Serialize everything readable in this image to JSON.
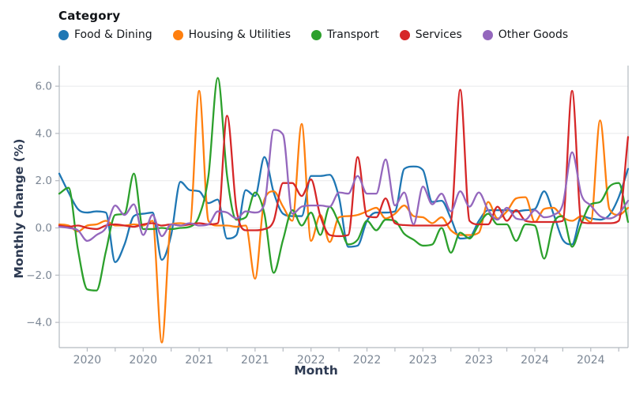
{
  "legend": {
    "title": "Category"
  },
  "axes": {
    "x_title": "Month",
    "y_title": "Monthly Change (%)",
    "x_tick_labels": [
      "2020",
      "2020",
      "2021",
      "2021",
      "2022",
      "2022",
      "2023",
      "2023",
      "2024",
      "2024"
    ],
    "y_tick_labels": [
      "6.0",
      "4.0",
      "2.0",
      "0.0",
      "−2.0",
      "−4.0"
    ],
    "y_tick_values": [
      6,
      4,
      2,
      0,
      -2,
      -4
    ]
  },
  "chart_data": {
    "type": "line",
    "x_unit": "month",
    "x_start_month": "2019-10",
    "x_end_month": "2024-11",
    "n_points": 62,
    "xlabel": "Month",
    "ylabel": "Monthly Change (%)",
    "ylim": [
      -5.1,
      6.9
    ],
    "grid": "horizontal",
    "legend_position": "top-left",
    "x_label_month_indices": [
      3,
      9,
      15,
      21,
      27,
      33,
      39,
      45,
      51,
      57
    ],
    "x_minor_tick_step_months": 3,
    "series": [
      {
        "name": "Food & Dining",
        "color": "#1f77b4",
        "values": [
          2.3,
          1.5,
          0.8,
          0.65,
          0.7,
          0.65,
          -1.45,
          -0.7,
          0.5,
          0.6,
          0.65,
          -1.35,
          -0.3,
          1.95,
          1.6,
          1.55,
          1.05,
          1.2,
          -0.45,
          -0.3,
          1.6,
          1.35,
          3.0,
          1.5,
          0.6,
          0.5,
          0.5,
          2.2,
          2.2,
          2.25,
          1.3,
          -0.8,
          -0.75,
          0.3,
          0.65,
          0.65,
          0.7,
          2.5,
          2.6,
          2.45,
          1.1,
          1.15,
          0.4,
          -0.45,
          -0.4,
          0.3,
          0.75,
          0.75,
          0.75,
          0.7,
          0.75,
          0.8,
          1.55,
          0.6,
          -0.5,
          -0.7,
          0.5,
          0.4,
          0.35,
          0.55,
          1.3,
          2.5
        ]
      },
      {
        "name": "Housing & Utilities",
        "color": "#ff7f0e",
        "values": [
          0.15,
          0.1,
          -0.15,
          0.1,
          0.15,
          0.3,
          0.1,
          0.1,
          0.15,
          0.1,
          0.3,
          -4.85,
          0.15,
          0.2,
          0.15,
          5.8,
          0.3,
          0.1,
          0.1,
          0.05,
          0.1,
          -2.15,
          1.2,
          1.55,
          0.9,
          0.3,
          4.4,
          -0.55,
          0.55,
          -0.6,
          0.45,
          0.5,
          0.55,
          0.7,
          0.85,
          0.4,
          0.6,
          0.95,
          0.5,
          0.45,
          0.2,
          0.45,
          -0.1,
          -0.3,
          -0.3,
          -0.2,
          1.1,
          0.4,
          0.7,
          1.25,
          1.3,
          0.25,
          0.8,
          0.85,
          0.45,
          0.3,
          0.5,
          0.25,
          4.55,
          0.8,
          0.55,
          0.85
        ]
      },
      {
        "name": "Transport",
        "color": "#2ca02c",
        "values": [
          1.45,
          1.7,
          -0.9,
          -2.6,
          -2.65,
          -1.0,
          0.55,
          0.6,
          2.3,
          -0.05,
          -0.05,
          0.0,
          -0.05,
          0.0,
          0.05,
          0.5,
          2.2,
          6.35,
          2.2,
          0.35,
          0.45,
          1.5,
          0.6,
          -1.9,
          -0.5,
          0.75,
          0.1,
          0.65,
          -0.3,
          0.9,
          0.2,
          -0.7,
          -0.5,
          0.3,
          -0.1,
          0.35,
          0.3,
          -0.25,
          -0.5,
          -0.75,
          -0.7,
          0.0,
          -1.05,
          -0.2,
          -0.45,
          0.15,
          0.6,
          0.15,
          0.15,
          -0.55,
          0.15,
          0.1,
          -1.3,
          0.2,
          0.5,
          -0.8,
          0.2,
          1.0,
          1.1,
          1.75,
          1.9,
          0.25
        ]
      },
      {
        "name": "Services",
        "color": "#d62728",
        "values": [
          0.1,
          0.05,
          0.1,
          0.0,
          -0.05,
          0.1,
          0.15,
          0.1,
          0.05,
          0.15,
          0.2,
          0.1,
          0.15,
          0.1,
          0.15,
          0.2,
          0.15,
          0.2,
          4.75,
          0.8,
          -0.1,
          -0.1,
          -0.05,
          0.3,
          1.9,
          1.9,
          1.35,
          2.05,
          0.5,
          -0.3,
          -0.35,
          -0.3,
          3.0,
          0.5,
          0.45,
          1.25,
          0.2,
          0.12,
          0.1,
          0.1,
          0.1,
          0.1,
          0.3,
          5.85,
          0.3,
          0.15,
          0.15,
          0.9,
          0.3,
          0.75,
          0.3,
          0.25,
          0.25,
          0.25,
          0.3,
          5.8,
          0.25,
          0.2,
          0.2,
          0.2,
          0.3,
          3.85
        ]
      },
      {
        "name": "Other Goods",
        "color": "#9467bd",
        "values": [
          0.05,
          0.0,
          -0.1,
          -0.55,
          -0.3,
          0.0,
          0.95,
          0.55,
          1.0,
          -0.3,
          0.55,
          -0.35,
          0.15,
          0.1,
          0.2,
          0.1,
          0.15,
          0.7,
          0.65,
          0.4,
          0.7,
          0.65,
          1.0,
          4.15,
          3.95,
          0.6,
          0.9,
          0.95,
          0.95,
          0.9,
          1.5,
          1.45,
          2.2,
          1.45,
          1.45,
          2.9,
          0.95,
          1.5,
          0.15,
          1.75,
          1.0,
          1.45,
          0.7,
          1.55,
          0.9,
          1.5,
          0.75,
          0.35,
          0.85,
          0.4,
          0.35,
          0.75,
          0.45,
          0.55,
          1.0,
          3.2,
          1.4,
          0.95,
          0.5,
          0.4,
          0.6,
          1.15
        ]
      }
    ]
  },
  "style": {
    "gridline_color": "#e8e9eb",
    "spine_color": "#b5bac1",
    "tick_color": "#b5bac1",
    "tick_label_color": "#7b8694",
    "axis_title_color": "#2d3a52"
  }
}
